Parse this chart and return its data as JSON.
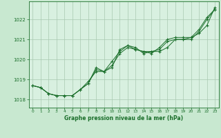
{
  "bg_color": "#c8e8d0",
  "plot_bg_color": "#d8f0e0",
  "grid_color": "#a8c8b0",
  "line_color": "#1a6e2a",
  "title": "Graphe pression niveau de la mer (hPa)",
  "xlim": [
    -0.5,
    23.5
  ],
  "ylim": [
    1017.6,
    1022.9
  ],
  "yticks": [
    1018,
    1019,
    1020,
    1021,
    1022
  ],
  "xticks": [
    0,
    1,
    2,
    3,
    4,
    5,
    6,
    7,
    8,
    9,
    10,
    11,
    12,
    13,
    14,
    15,
    16,
    17,
    18,
    19,
    20,
    21,
    22,
    23
  ],
  "series": [
    [
      1018.7,
      1018.6,
      1018.3,
      1018.2,
      1018.2,
      1018.2,
      1018.5,
      1018.8,
      1019.5,
      1019.4,
      1019.6,
      1020.5,
      1020.7,
      1020.5,
      1020.4,
      1020.3,
      1020.6,
      1021.0,
      1021.1,
      1021.1,
      1021.1,
      1021.5,
      1022.1,
      1022.5
    ],
    [
      1018.7,
      1018.6,
      1018.3,
      1018.2,
      1018.2,
      1018.2,
      1018.5,
      1018.8,
      1019.6,
      1019.4,
      1019.9,
      1020.4,
      1020.7,
      1020.6,
      1020.3,
      1020.4,
      1020.5,
      1020.9,
      1021.0,
      1021.0,
      1021.1,
      1021.3,
      1021.7,
      1022.6
    ],
    [
      1018.7,
      1018.6,
      1018.3,
      1018.2,
      1018.2,
      1018.2,
      1018.5,
      1018.9,
      1019.4,
      1019.4,
      1019.7,
      1020.3,
      1020.6,
      1020.5,
      1020.4,
      1020.4,
      1020.4,
      1020.6,
      1021.0,
      1021.0,
      1021.0,
      1021.4,
      1022.0,
      1022.5
    ]
  ]
}
